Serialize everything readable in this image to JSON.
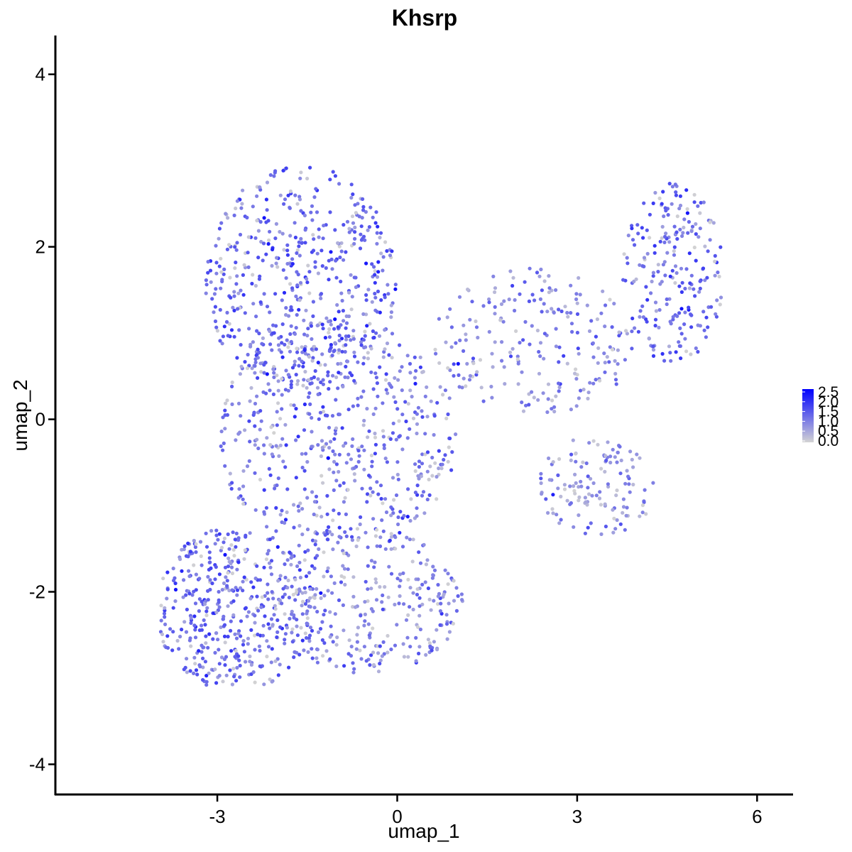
{
  "chart_data": {
    "type": "scatter",
    "title": "Khsrp",
    "xlabel": "umap_1",
    "ylabel": "umap_2",
    "xlim": [
      -5.7,
      6.6
    ],
    "ylim": [
      -4.35,
      4.45
    ],
    "x_ticks": [
      -3,
      0,
      3,
      6
    ],
    "y_ticks": [
      4,
      2,
      0,
      -2,
      -4
    ],
    "x_tick_labels": [
      "-3",
      "0",
      "3",
      "6"
    ],
    "y_tick_labels": [
      "4",
      "2",
      "0",
      "-2",
      "-4"
    ],
    "grid": false,
    "legend": {
      "placement": "right",
      "type": "colorbar",
      "range": [
        0.0,
        2.5
      ],
      "labels": [
        "2.5",
        "2.0",
        "1.5",
        "1.0",
        "0.5",
        "0.0"
      ],
      "low_color": "#d3d3d3",
      "high_color": "#0000ff"
    },
    "point_count": 2200,
    "regions": [
      {
        "name": "upper-left lobe",
        "cx": -1.6,
        "cy": 1.6,
        "rx": 1.6,
        "ry": 1.35,
        "weight": 0.24,
        "mean_value": 1.25
      },
      {
        "name": "central body",
        "cx": -1.0,
        "cy": -0.2,
        "rx": 2.0,
        "ry": 1.35,
        "weight": 0.24,
        "mean_value": 1.1
      },
      {
        "name": "lower-left region",
        "cx": -2.7,
        "cy": -2.2,
        "rx": 1.35,
        "ry": 0.95,
        "weight": 0.2,
        "mean_value": 1.2
      },
      {
        "name": "lower-middle region",
        "cx": -0.5,
        "cy": -2.1,
        "rx": 1.6,
        "ry": 0.85,
        "weight": 0.14,
        "mean_value": 0.95
      },
      {
        "name": "right arm",
        "cx": 2.3,
        "cy": 0.9,
        "rx": 1.7,
        "ry": 0.85,
        "weight": 0.1,
        "mean_value": 0.9
      },
      {
        "name": "upper-right cluster",
        "cx": 4.6,
        "cy": 1.7,
        "rx": 0.85,
        "ry": 1.05,
        "weight": 0.1,
        "mean_value": 1.25
      },
      {
        "name": "right-lower band",
        "cx": 3.3,
        "cy": -0.8,
        "rx": 1.0,
        "ry": 0.6,
        "weight": 0.06,
        "mean_value": 0.8
      }
    ],
    "max_value_point": {
      "x": -1.15,
      "y": -0.45,
      "value": 2.5
    }
  }
}
